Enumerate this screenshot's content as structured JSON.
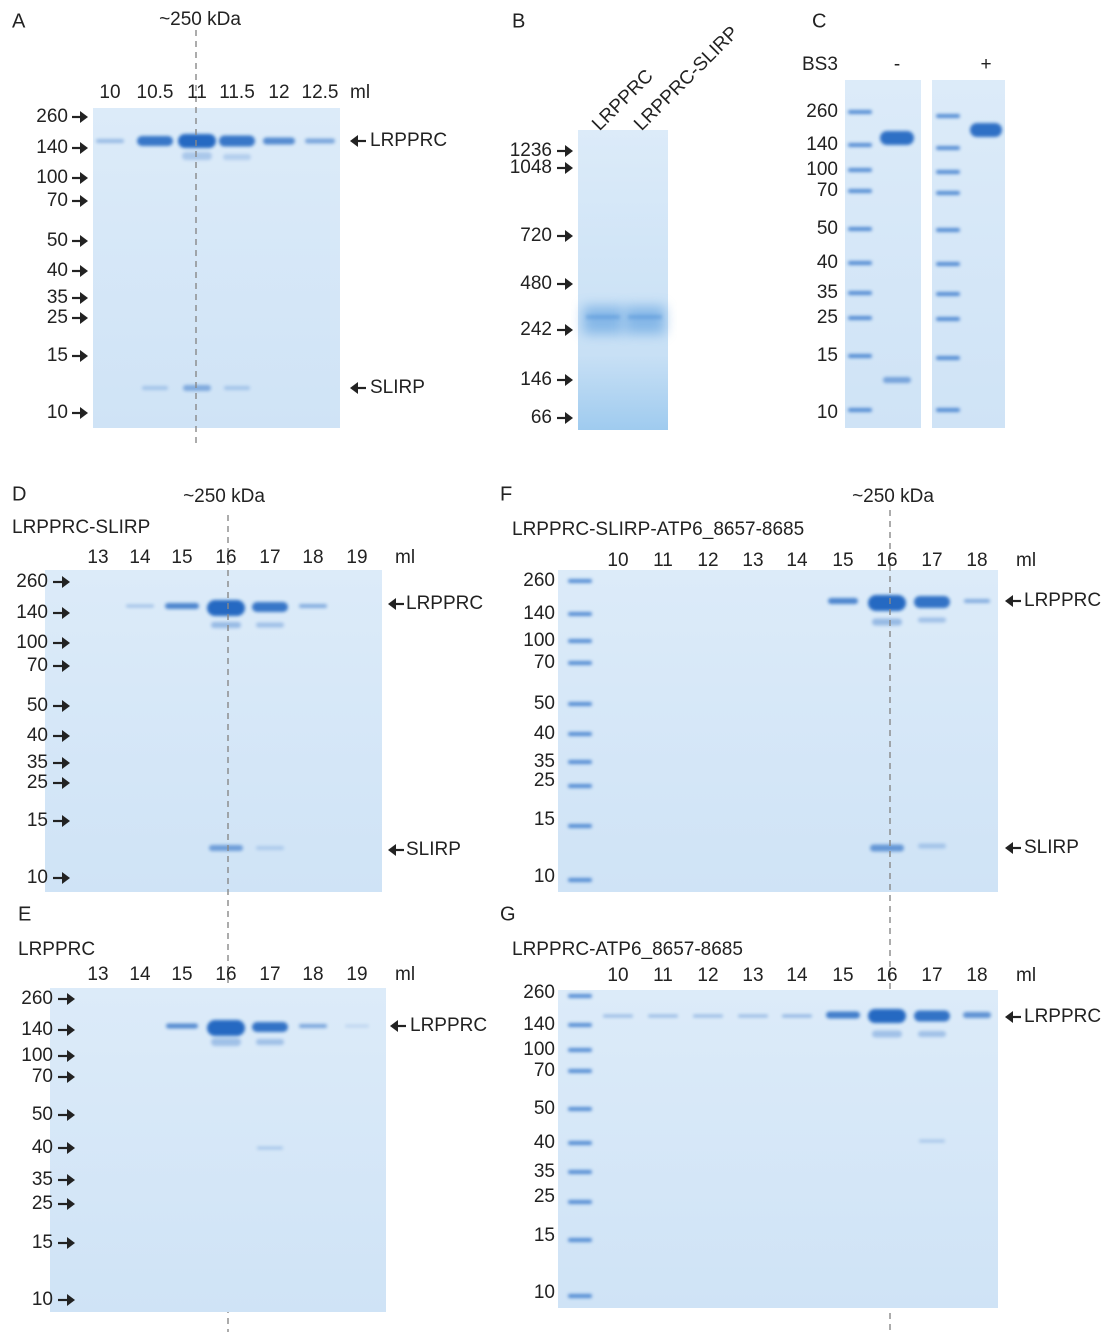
{
  "panels": [
    {
      "letter": "A",
      "note": "~250 kDa",
      "lanes": [
        "10",
        "10.5",
        "11",
        "11.5",
        "12",
        "12.5"
      ],
      "unit": "ml",
      "markers": [
        "260",
        "140",
        "100",
        "70",
        "50",
        "40",
        "35",
        "25",
        "15",
        "10"
      ],
      "annotations": [
        "LRPPRC",
        "SLIRP"
      ]
    },
    {
      "letter": "B",
      "lanes": [
        "LRPPRC",
        "LRPPRC-SLIRP"
      ],
      "markers": [
        "1236",
        "1048",
        "720",
        "480",
        "242",
        "146",
        "66"
      ]
    },
    {
      "letter": "C",
      "reagent": "BS3",
      "lanes": [
        "-",
        "+"
      ],
      "markers": [
        "260",
        "140",
        "100",
        "70",
        "50",
        "40",
        "35",
        "25",
        "15",
        "10"
      ]
    },
    {
      "letter": "D",
      "note": "~250 kDa",
      "title": "LRPPRC-SLIRP",
      "lanes": [
        "13",
        "14",
        "15",
        "16",
        "17",
        "18",
        "19"
      ],
      "unit": "ml",
      "markers": [
        "260",
        "140",
        "100",
        "70",
        "50",
        "40",
        "35",
        "25",
        "15",
        "10"
      ],
      "annotations": [
        "LRPPRC",
        "SLIRP"
      ]
    },
    {
      "letter": "E",
      "title": "LRPPRC",
      "lanes": [
        "13",
        "14",
        "15",
        "16",
        "17",
        "18",
        "19"
      ],
      "unit": "ml",
      "markers": [
        "260",
        "140",
        "100",
        "70",
        "50",
        "40",
        "35",
        "25",
        "15",
        "10"
      ],
      "annotations": [
        "LRPPRC"
      ]
    },
    {
      "letter": "F",
      "note": "~250 kDa",
      "title": "LRPPRC-SLIRP-ATP6_8657-8685",
      "lanes": [
        "10",
        "11",
        "12",
        "13",
        "14",
        "15",
        "16",
        "17",
        "18"
      ],
      "unit": "ml",
      "markers": [
        "260",
        "140",
        "100",
        "70",
        "50",
        "40",
        "35",
        "25",
        "15",
        "10"
      ],
      "annotations": [
        "LRPPRC",
        "SLIRP"
      ]
    },
    {
      "letter": "G",
      "title": "LRPPRC-ATP6_8657-8685",
      "lanes": [
        "10",
        "11",
        "12",
        "13",
        "14",
        "15",
        "16",
        "17",
        "18"
      ],
      "unit": "ml",
      "markers": [
        "260",
        "140",
        "100",
        "70",
        "50",
        "40",
        "35",
        "25",
        "15",
        "10"
      ],
      "annotations": [
        "LRPPRC"
      ]
    }
  ]
}
